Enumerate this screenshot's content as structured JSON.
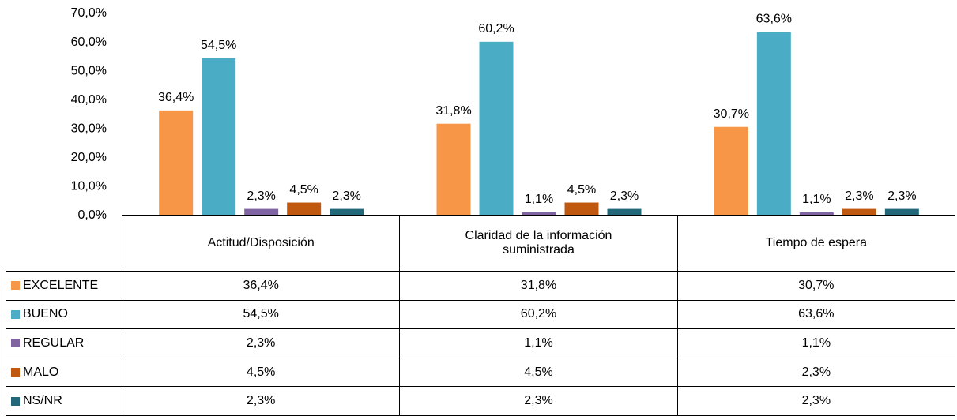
{
  "chart_data": {
    "type": "bar",
    "categories": [
      "Actitud/Disposición",
      "Claridad de la información suministrada",
      "Tiempo de espera"
    ],
    "series": [
      {
        "name": "EXCELENTE",
        "color": "#F79646",
        "values": [
          36.4,
          31.8,
          30.7
        ],
        "value_labels": [
          "36,4%",
          "31,8%",
          "30,7%"
        ]
      },
      {
        "name": "BUENO",
        "color": "#4BACC6",
        "values": [
          54.5,
          60.2,
          63.6
        ],
        "value_labels": [
          "54,5%",
          "60,2%",
          "63,6%"
        ]
      },
      {
        "name": "REGULAR",
        "color": "#8064A2",
        "values": [
          2.3,
          1.1,
          1.1
        ],
        "value_labels": [
          "2,3%",
          "1,1%",
          "1,1%"
        ]
      },
      {
        "name": "MALO",
        "color": "#C0590F",
        "values": [
          4.5,
          4.5,
          2.3
        ],
        "value_labels": [
          "4,5%",
          "4,5%",
          "2,3%"
        ]
      },
      {
        "name": "NS/NR",
        "color": "#23687A",
        "values": [
          2.3,
          2.3,
          2.3
        ],
        "value_labels": [
          "2,3%",
          "2,3%",
          "2,3%"
        ]
      }
    ],
    "ylim": [
      0,
      70
    ],
    "yticks": [
      {
        "value": 0,
        "label": "0,0%"
      },
      {
        "value": 10,
        "label": "10,0%"
      },
      {
        "value": 20,
        "label": "20,0%"
      },
      {
        "value": 30,
        "label": "30,0%"
      },
      {
        "value": 40,
        "label": "40,0%"
      },
      {
        "value": 50,
        "label": "50,0%"
      },
      {
        "value": 60,
        "label": "60,0%"
      },
      {
        "value": 70,
        "label": "70,0%"
      }
    ],
    "grid": false,
    "data_table": true
  }
}
